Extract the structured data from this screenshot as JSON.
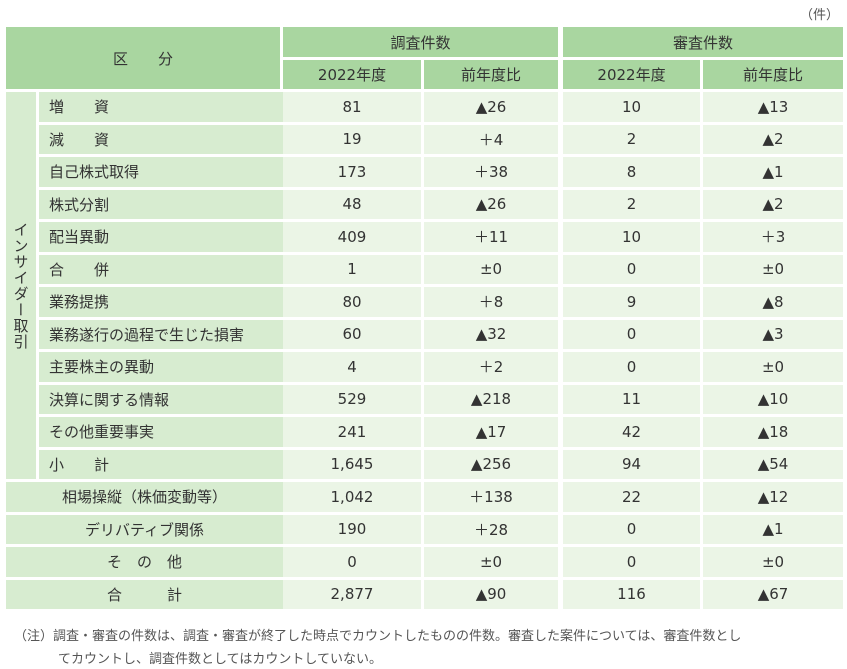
{
  "unit": "（件）",
  "header": {
    "category": "区　　分",
    "survey": "調査件数",
    "review": "審査件数",
    "sub": [
      "2022年度",
      "前年度比",
      "2022年度",
      "前年度比"
    ]
  },
  "group_label": "インサイダー取引",
  "insider_rows": [
    {
      "label": "増　　資",
      "values": [
        "81",
        "▲26",
        "10",
        "▲13"
      ]
    },
    {
      "label": "減　　資",
      "values": [
        "19",
        "＋4",
        "2",
        "▲2"
      ]
    },
    {
      "label": "自己株式取得",
      "values": [
        "173",
        "＋38",
        "8",
        "▲1"
      ]
    },
    {
      "label": "株式分割",
      "values": [
        "48",
        "▲26",
        "2",
        "▲2"
      ]
    },
    {
      "label": "配当異動",
      "values": [
        "409",
        "＋11",
        "10",
        "＋3"
      ]
    },
    {
      "label": "合　　併",
      "values": [
        "1",
        "±0",
        "0",
        "±0"
      ]
    },
    {
      "label": "業務提携",
      "values": [
        "80",
        "＋8",
        "9",
        "▲8"
      ]
    },
    {
      "label": "業務遂行の過程で生じた損害",
      "values": [
        "60",
        "▲32",
        "0",
        "▲3"
      ]
    },
    {
      "label": "主要株主の異動",
      "values": [
        "4",
        "＋2",
        "0",
        "±0"
      ]
    },
    {
      "label": "決算に関する情報",
      "values": [
        "529",
        "▲218",
        "11",
        "▲10"
      ]
    },
    {
      "label": "その他重要事実",
      "values": [
        "241",
        "▲17",
        "42",
        "▲18"
      ]
    },
    {
      "label": "小　　計",
      "values": [
        "1,645",
        "▲256",
        "94",
        "▲54"
      ]
    }
  ],
  "other_rows": [
    {
      "label": "相場操縦（株価変動等）",
      "values": [
        "1,042",
        "＋138",
        "22",
        "▲12"
      ]
    },
    {
      "label": "デリバティブ関係",
      "values": [
        "190",
        "＋28",
        "0",
        "▲1"
      ]
    },
    {
      "label": "そ　の　他",
      "values": [
        "0",
        "±0",
        "0",
        "±0"
      ]
    },
    {
      "label": "合　　　計",
      "values": [
        "2,877",
        "▲90",
        "116",
        "▲67"
      ]
    }
  ],
  "note": [
    "（注）調査・審査の件数は、調査・審査が終了した時点でカウントしたものの件数。審査した案件については、審査件数とし",
    "てカウントし、調査件数としてはカウントしていない。"
  ]
}
